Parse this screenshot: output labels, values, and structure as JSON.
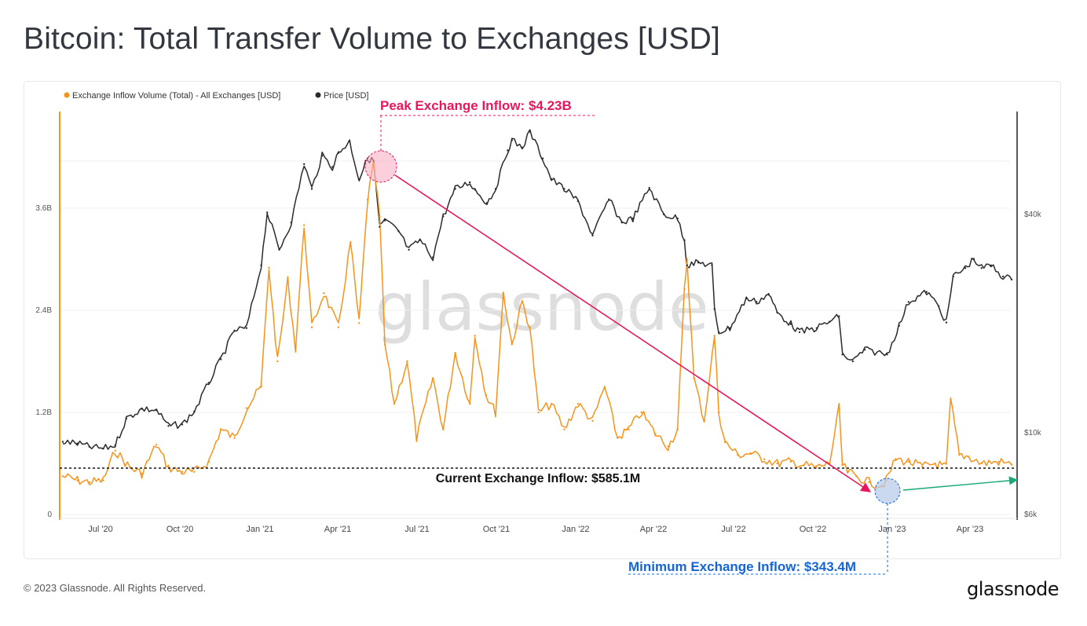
{
  "page": {
    "title": "Bitcoin: Total Transfer Volume to Exchanges [USD]",
    "copyright": "© 2023 Glassnode. All Rights Reserved.",
    "logo": "glassnode",
    "watermark": "glassnode"
  },
  "colors": {
    "inflow": "#f7931a",
    "price": "#2b2b2b",
    "peak": "#e8175d",
    "min": "#1565d8",
    "arrow_green": "#19a974"
  },
  "chart_data": {
    "type": "line",
    "title": "Bitcoin: Total Transfer Volume to Exchanges [USD]",
    "x_ticks": [
      "Jul '20",
      "Oct '20",
      "Jan '21",
      "Apr '21",
      "Jul '21",
      "Oct '21",
      "Jan '22",
      "Apr '22",
      "Jul '22",
      "Oct '22",
      "Jan '23",
      "Apr '23"
    ],
    "y_left": {
      "ticks": [
        "0",
        "1.2B",
        "2.4B",
        "3.6B"
      ],
      "range": [
        0,
        4.7
      ]
    },
    "y_right": {
      "ticks": [
        "$6k",
        "$10k",
        "$40k"
      ],
      "scale": "log",
      "range": [
        6000,
        80000
      ]
    },
    "legend": [
      {
        "name": "Exchange Inflow Volume (Total) - All Exchanges [USD]",
        "color": "#f7931a"
      },
      {
        "name": "Price [USD]",
        "color": "#2b2b2b"
      }
    ],
    "series": [
      {
        "name": "Exchange Inflow Volume (Total) - All Exchanges [USD]",
        "unit": "B USD",
        "x": [
          "2020-05-15",
          "2020-06-01",
          "2020-06-15",
          "2020-07-01",
          "2020-07-15",
          "2020-08-01",
          "2020-08-15",
          "2020-09-01",
          "2020-09-15",
          "2020-10-01",
          "2020-10-15",
          "2020-11-01",
          "2020-11-15",
          "2020-12-01",
          "2020-12-15",
          "2021-01-01",
          "2021-01-10",
          "2021-01-20",
          "2021-02-01",
          "2021-02-10",
          "2021-02-20",
          "2021-03-01",
          "2021-03-15",
          "2021-04-01",
          "2021-04-15",
          "2021-04-25",
          "2021-05-05",
          "2021-05-12",
          "2021-05-19",
          "2021-05-25",
          "2021-06-05",
          "2021-06-20",
          "2021-07-01",
          "2021-07-20",
          "2021-08-01",
          "2021-08-15",
          "2021-09-01",
          "2021-09-07",
          "2021-09-20",
          "2021-10-01",
          "2021-10-10",
          "2021-10-20",
          "2021-11-01",
          "2021-11-10",
          "2021-11-20",
          "2021-12-05",
          "2021-12-20",
          "2022-01-05",
          "2022-01-22",
          "2022-02-05",
          "2022-02-20",
          "2022-03-05",
          "2022-03-20",
          "2022-04-05",
          "2022-04-20",
          "2022-05-01",
          "2022-05-09",
          "2022-05-12",
          "2022-05-20",
          "2022-06-01",
          "2022-06-13",
          "2022-06-18",
          "2022-06-25",
          "2022-07-10",
          "2022-07-25",
          "2022-08-10",
          "2022-08-25",
          "2022-09-10",
          "2022-09-25",
          "2022-10-10",
          "2022-10-25",
          "2022-11-05",
          "2022-11-09",
          "2022-11-15",
          "2022-11-25",
          "2022-12-10",
          "2022-12-25",
          "2022-12-30",
          "2023-01-10",
          "2023-01-25",
          "2023-02-10",
          "2023-02-25",
          "2023-03-10",
          "2023-03-15",
          "2023-03-25",
          "2023-04-05",
          "2023-04-20",
          "2023-05-10",
          "2023-05-25"
        ],
        "values": [
          0.45,
          0.4,
          0.38,
          0.4,
          0.75,
          0.55,
          0.48,
          0.82,
          0.55,
          0.5,
          0.5,
          0.62,
          1.0,
          0.9,
          1.25,
          1.5,
          2.9,
          1.8,
          2.75,
          1.95,
          3.4,
          2.2,
          2.6,
          2.2,
          3.2,
          2.25,
          3.7,
          4.12,
          3.5,
          2.0,
          1.3,
          1.8,
          0.9,
          1.6,
          1.0,
          1.9,
          1.3,
          2.1,
          1.4,
          1.2,
          2.6,
          2.0,
          2.5,
          2.2,
          1.2,
          1.3,
          1.0,
          1.3,
          1.1,
          1.5,
          0.9,
          1.0,
          1.2,
          0.95,
          0.8,
          1.0,
          2.65,
          3.0,
          1.6,
          1.1,
          2.1,
          1.2,
          0.85,
          0.7,
          0.72,
          0.65,
          0.6,
          0.62,
          0.58,
          0.55,
          0.6,
          1.25,
          0.58,
          0.5,
          0.45,
          0.38,
          0.34,
          0.4,
          0.65,
          0.62,
          0.56,
          0.6,
          0.55,
          1.35,
          0.7,
          0.68,
          0.6,
          0.62,
          0.585
        ]
      },
      {
        "name": "Price [USD]",
        "unit": "USD",
        "x": [
          "2020-05-15",
          "2020-06-01",
          "2020-06-15",
          "2020-07-01",
          "2020-07-15",
          "2020-07-28",
          "2020-08-15",
          "2020-09-01",
          "2020-09-15",
          "2020-10-01",
          "2020-10-15",
          "2020-11-01",
          "2020-11-15",
          "2020-12-01",
          "2020-12-15",
          "2021-01-01",
          "2021-01-08",
          "2021-01-22",
          "2021-02-05",
          "2021-02-20",
          "2021-03-01",
          "2021-03-13",
          "2021-03-25",
          "2021-04-01",
          "2021-04-14",
          "2021-04-25",
          "2021-05-05",
          "2021-05-12",
          "2021-05-19",
          "2021-05-25",
          "2021-06-10",
          "2021-06-22",
          "2021-07-05",
          "2021-07-20",
          "2021-08-01",
          "2021-08-15",
          "2021-09-01",
          "2021-09-07",
          "2021-09-21",
          "2021-10-01",
          "2021-10-15",
          "2021-10-20",
          "2021-11-01",
          "2021-11-10",
          "2021-11-25",
          "2021-12-05",
          "2021-12-20",
          "2022-01-05",
          "2022-01-22",
          "2022-02-10",
          "2022-02-25",
          "2022-03-10",
          "2022-03-29",
          "2022-04-15",
          "2022-05-01",
          "2022-05-09",
          "2022-05-12",
          "2022-05-25",
          "2022-06-10",
          "2022-06-13",
          "2022-06-18",
          "2022-07-01",
          "2022-07-20",
          "2022-08-01",
          "2022-08-15",
          "2022-08-25",
          "2022-09-10",
          "2022-09-20",
          "2022-10-10",
          "2022-10-25",
          "2022-11-05",
          "2022-11-09",
          "2022-11-21",
          "2022-12-05",
          "2022-12-31",
          "2023-01-14",
          "2023-01-25",
          "2023-02-15",
          "2023-03-01",
          "2023-03-10",
          "2023-03-18",
          "2023-04-01",
          "2023-04-11",
          "2023-04-20",
          "2023-05-01",
          "2023-05-15",
          "2023-05-25"
        ],
        "values": [
          9500,
          9400,
          9200,
          9100,
          9300,
          11000,
          11700,
          11600,
          10500,
          10600,
          11500,
          13800,
          16000,
          19200,
          19500,
          29000,
          40500,
          32000,
          38000,
          55000,
          47000,
          58000,
          54000,
          59000,
          63500,
          50000,
          57000,
          56000,
          37000,
          38500,
          36000,
          32000,
          34000,
          30500,
          39500,
          47000,
          49000,
          46800,
          43000,
          47000,
          60000,
          64000,
          61000,
          67500,
          57000,
          50000,
          47000,
          43500,
          35000,
          44000,
          38000,
          39000,
          47300,
          40000,
          39000,
          34000,
          29000,
          29500,
          29000,
          22000,
          19000,
          19500,
          23500,
          23000,
          24200,
          21500,
          20000,
          19000,
          19500,
          20300,
          21000,
          16500,
          15800,
          17000,
          16500,
          19800,
          23000,
          24500,
          22400,
          20200,
          27000,
          28500,
          30200,
          28500,
          29000,
          27000,
          26500
        ]
      }
    ],
    "annotations": {
      "peak": {
        "label": "Peak Exchange Inflow: $4.23B",
        "value": "4.23B"
      },
      "current": {
        "label": "Current Exchange Inflow: $585.1M",
        "value": "585.1M"
      },
      "minimum": {
        "label": "Minimum Exchange Inflow: $343.4M",
        "value": "343.4M"
      }
    }
  }
}
